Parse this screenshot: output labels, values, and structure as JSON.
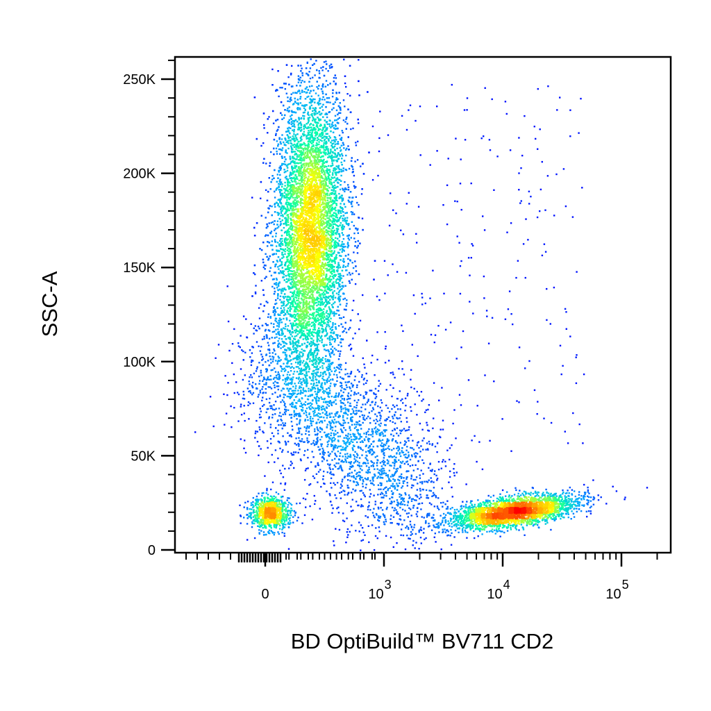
{
  "chart_data": {
    "type": "scatter",
    "subtype": "flow-cytometry density dot plot",
    "xlabel": "BD OptiBuild™ BV711 CD2",
    "ylabel": "SSC-A",
    "x_scale": "biexponential",
    "y_scale": "linear",
    "xlim": [
      -300,
      200000
    ],
    "ylim": [
      -5000,
      262000
    ],
    "x_tick_labels": [
      {
        "value": 0,
        "base": "0",
        "exp": ""
      },
      {
        "value": 1000,
        "base": "10",
        "exp": "3"
      },
      {
        "value": 10000,
        "base": "10",
        "exp": "4"
      },
      {
        "value": 100000,
        "base": "10",
        "exp": "5"
      }
    ],
    "y_ticks": [
      0,
      50000,
      100000,
      150000,
      200000,
      250000
    ],
    "y_tick_labels": [
      "0",
      "50K",
      "100K",
      "150K",
      "200K",
      "250K"
    ],
    "color_scale": [
      "#0000ff",
      "#00aaff",
      "#00ffaa",
      "#ffff00",
      "#ff8800",
      "#ff0000"
    ],
    "populations": [
      {
        "label": "",
        "x_center": 150,
        "y_center": 160000,
        "x_spread": 70,
        "y_spread": 45000,
        "relative_density": 1.0
      },
      {
        "label": "",
        "x_center": 8500,
        "y_center": 22000,
        "x_spread": 0.22,
        "y_spread": 6000,
        "relative_density": 0.45
      },
      {
        "label": "",
        "x_center": 20,
        "y_center": 20000,
        "x_spread": 40,
        "y_spread": 6000,
        "relative_density": 0.12
      },
      {
        "label": "",
        "x_center": 250,
        "y_center": 65000,
        "x_spread": 120,
        "y_spread": 25000,
        "relative_density": 0.2
      }
    ]
  }
}
